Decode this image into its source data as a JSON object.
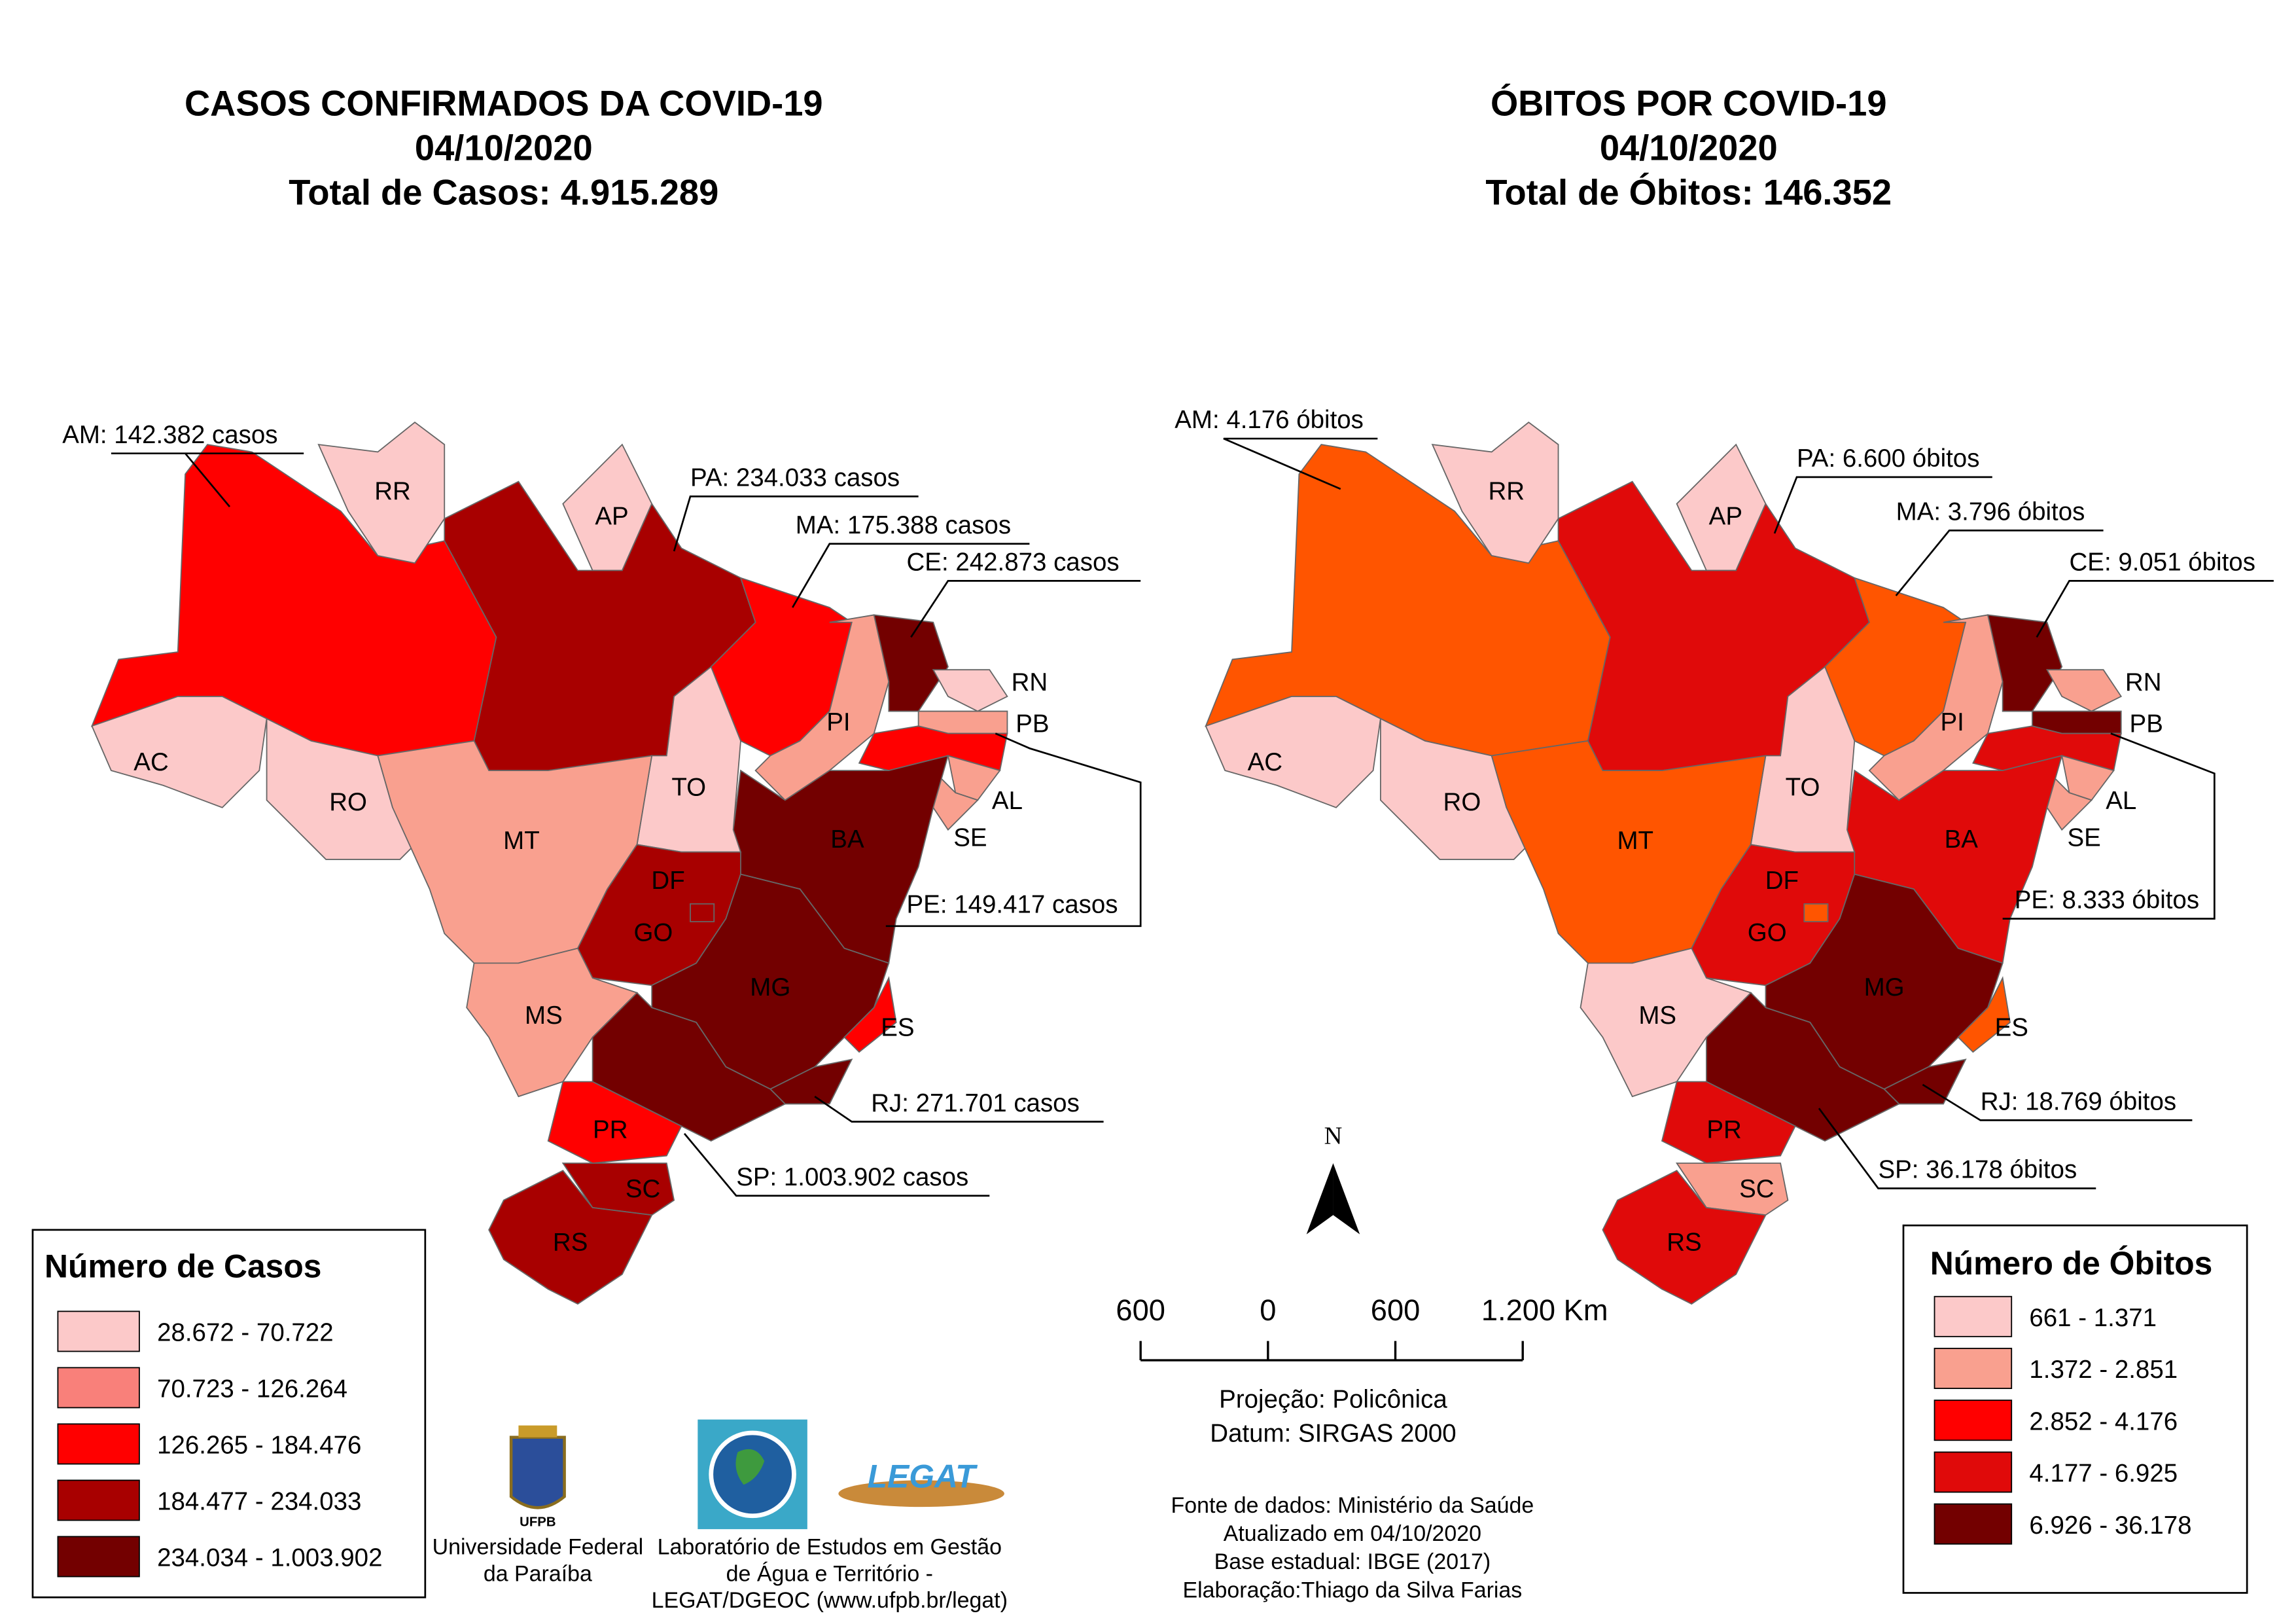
{
  "maps": [
    {
      "title": [
        "CASOS CONFIRMADOS DA COVID-19",
        "04/10/2020",
        "Total de Casos: 4.915.289"
      ],
      "states": [
        {
          "color": "#ff0000"
        },
        {
          "label": "AC",
          "color": "#fcc9c9"
        },
        {
          "label": "RO",
          "color": "#fcc9c9"
        },
        {
          "label": "RR",
          "color": "#fcc9c9"
        },
        {
          "label": "AP",
          "color": "#fcc9c9"
        },
        {
          "color": "#a80000"
        },
        {
          "color": "#ff0000"
        },
        {
          "label": "PI",
          "color": "#f9a08f"
        },
        {
          "color": "#730000"
        },
        {
          "label": "RN",
          "color": "#fcc9c9"
        },
        {
          "label": "PB",
          "color": "#f9a08f"
        },
        {
          "color": "#ff0000"
        },
        {
          "label": "AL",
          "color": "#f9a08f"
        },
        {
          "label": "SE",
          "color": "#f9a08f"
        },
        {
          "label": "BA",
          "color": "#730000"
        },
        {
          "label": "TO",
          "color": "#fcc9c9"
        },
        {
          "label": "MT",
          "color": "#f9a08f"
        },
        {
          "label": "GO",
          "color": "#a80000"
        },
        {
          "label": "DF",
          "color": "#a80000"
        },
        {
          "label": "MS",
          "color": "#f9a08f"
        },
        {
          "label": "MG",
          "color": "#730000"
        },
        {
          "label": "ES",
          "color": "#ff0000"
        },
        {
          "color": "#730000"
        },
        {
          "color": "#730000"
        },
        {
          "label": "PR",
          "color": "#ff0000"
        },
        {
          "label": "SC",
          "color": "#a80000"
        },
        {
          "label": "RS",
          "color": "#a80000"
        }
      ],
      "callouts": [
        "AM: 142.382 casos",
        "PA: 234.033 casos",
        "MA: 175.388 casos",
        "CE: 242.873 casos",
        "PE: 149.417 casos",
        "RJ: 271.701 casos",
        "SP: 1.003.902 casos"
      ],
      "legend": {
        "title": "Número de Casos",
        "items": [
          {
            "label": "28.672 - 70.722",
            "color": "#fcc9c9"
          },
          {
            "label": "70.723 - 126.264",
            "color": "#f9807a"
          },
          {
            "label": "126.265 - 184.476",
            "color": "#ff0000"
          },
          {
            "label": "184.477 - 234.033",
            "color": "#a80000"
          },
          {
            "label": "234.034 - 1.003.902",
            "color": "#730000"
          }
        ]
      }
    },
    {
      "title": [
        "ÓBITOS POR COVID-19",
        "04/10/2020",
        "Total de Óbitos: 146.352"
      ],
      "states": [
        {
          "color": "#ff5500"
        },
        {
          "label": "AC",
          "color": "#fcc9c9"
        },
        {
          "label": "RO",
          "color": "#fcc9c9"
        },
        {
          "label": "RR",
          "color": "#fcc9c9"
        },
        {
          "label": "AP",
          "color": "#fcc9c9"
        },
        {
          "color": "#e00a0a"
        },
        {
          "color": "#ff5500"
        },
        {
          "label": "PI",
          "color": "#f9a08f"
        },
        {
          "color": "#730000"
        },
        {
          "label": "RN",
          "color": "#f9a08f"
        },
        {
          "label": "PB",
          "color": "#730000"
        },
        {
          "color": "#e00a0a"
        },
        {
          "label": "AL",
          "color": "#f9a08f"
        },
        {
          "label": "SE",
          "color": "#f9a08f"
        },
        {
          "label": "BA",
          "color": "#e00a0a"
        },
        {
          "label": "TO",
          "color": "#fcc9c9"
        },
        {
          "label": "MT",
          "color": "#ff5500"
        },
        {
          "label": "GO",
          "color": "#e00a0a"
        },
        {
          "label": "DF",
          "color": "#ff5500"
        },
        {
          "label": "MS",
          "color": "#fcc9c9"
        },
        {
          "label": "MG",
          "color": "#730000"
        },
        {
          "label": "ES",
          "color": "#ff5500"
        },
        {
          "color": "#730000"
        },
        {
          "color": "#730000"
        },
        {
          "label": "PR",
          "color": "#e00a0a"
        },
        {
          "label": "SC",
          "color": "#f9a08f"
        },
        {
          "label": "RS",
          "color": "#e00a0a"
        }
      ],
      "callouts": [
        "AM: 4.176 óbitos",
        "PA: 6.600 óbitos",
        "MA: 3.796 óbitos",
        "CE: 9.051 óbitos",
        "PE: 8.333 óbitos",
        "RJ: 18.769 óbitos",
        "SP: 36.178 óbitos"
      ],
      "legend": {
        "title": "Número de Óbitos",
        "items": [
          {
            "label": "661 - 1.371",
            "color": "#fcc9c9"
          },
          {
            "label": "1.372 - 2.851",
            "color": "#f9a08f"
          },
          {
            "label": "2.852 - 4.176",
            "color": "#ff0000"
          },
          {
            "label": "4.177 - 6.925",
            "color": "#e00a0a"
          },
          {
            "label": "6.926 - 36.178",
            "color": "#730000"
          }
        ]
      }
    }
  ],
  "north": "N",
  "scale_bar": [
    "600",
    "0",
    "600",
    "1.200 Km"
  ],
  "projection": [
    "Projeção: Policônica",
    "Datum: SIRGAS 2000"
  ],
  "sources": [
    "Fonte de dados: Ministério da Saúde",
    "Atualizado em 04/10/2020",
    "Base estadual: IBGE (2017)",
    "Elaboração:Thiago da Silva Farias"
  ],
  "logos": {
    "ufpb": "UFPB",
    "ufpb_name": [
      "Universidade Federal",
      "da Paraíba"
    ],
    "legat": "LEGAT",
    "lab": [
      "Laboratório de Estudos em Gestão",
      "de Água e Território -",
      "LEGAT/DGEOC (www.ufpb.br/legat)"
    ]
  }
}
